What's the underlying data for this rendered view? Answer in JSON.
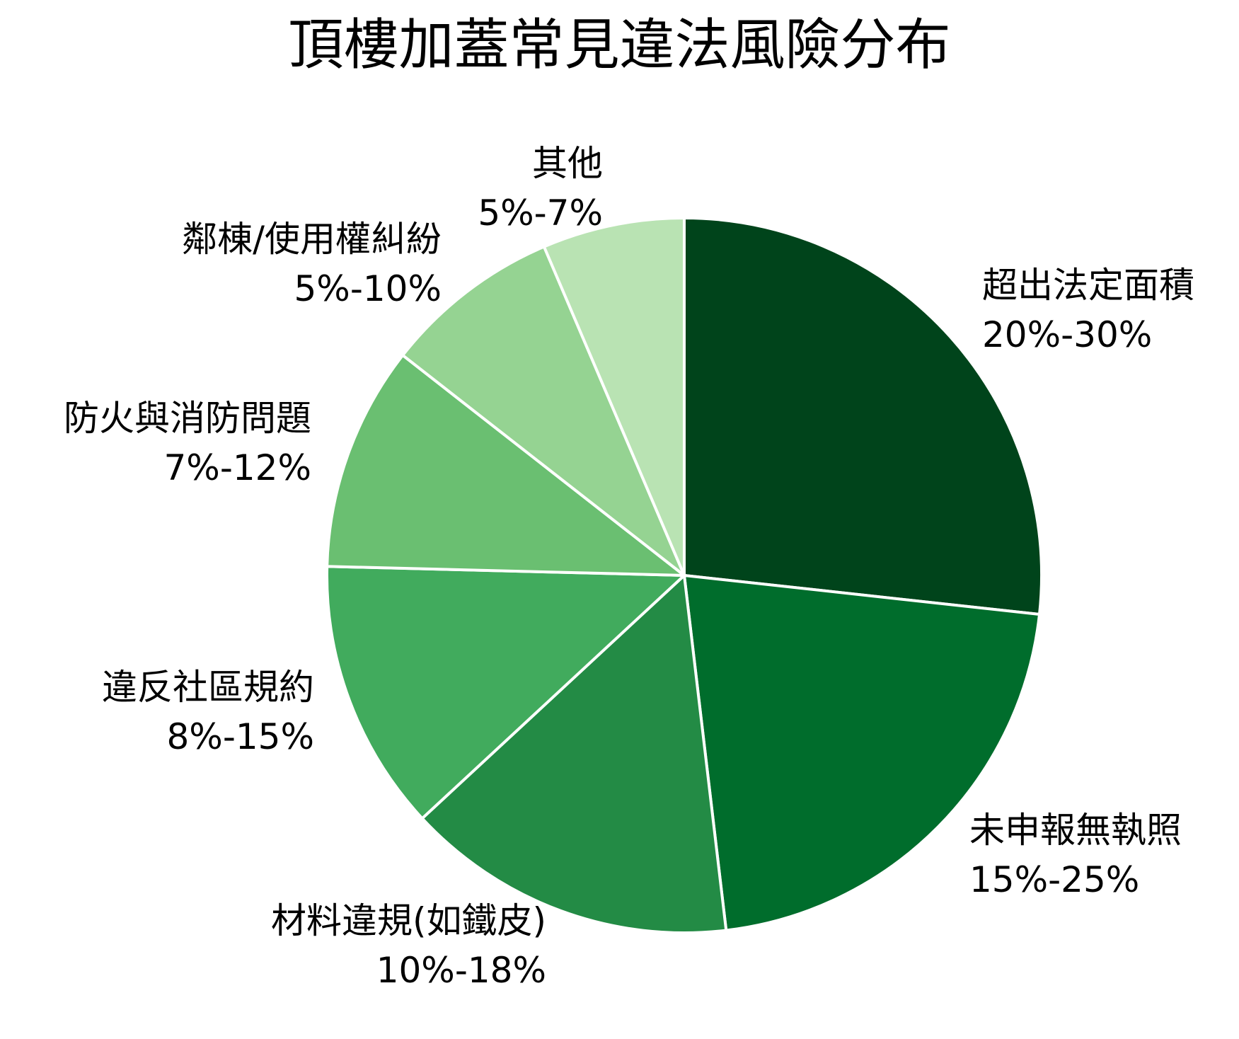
{
  "chart_data": {
    "type": "pie",
    "title": "頂樓加蓋常見違法風險分布",
    "start": "12 o'clock",
    "direction": "clockwise",
    "slices": [
      {
        "label": "超出法定面積",
        "range": "20%-30%",
        "value": 25,
        "color": "#00441b"
      },
      {
        "label": "未申報無執照",
        "range": "15%-25%",
        "value": 20,
        "color": "#006d2c"
      },
      {
        "label": "材料違規(如鐵皮)",
        "range": "10%-18%",
        "value": 14,
        "color": "#238b45"
      },
      {
        "label": "違反社區規約",
        "range": "8%-15%",
        "value": 11.5,
        "color": "#41ab5d"
      },
      {
        "label": "防火與消防問題",
        "range": "7%-12%",
        "value": 9.5,
        "color": "#6abf71"
      },
      {
        "label": "鄰棟/使用權糾紛",
        "range": "5%-10%",
        "value": 7.5,
        "color": "#95d392"
      },
      {
        "label": "其他",
        "range": "5%-7%",
        "value": 6,
        "color": "#b9e3b3"
      }
    ]
  }
}
